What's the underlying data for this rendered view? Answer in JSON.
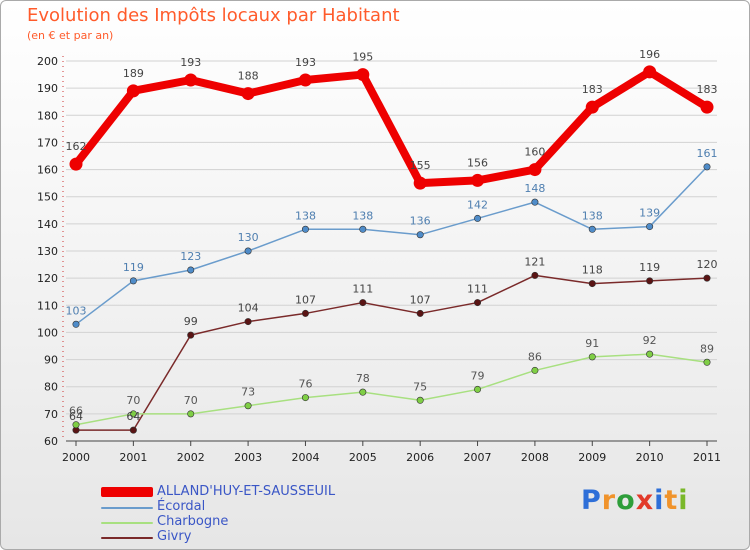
{
  "chart": {
    "title": "Evolution des Impôts locaux par Habitant",
    "subtitle": "(en € et par an)"
  },
  "colors": {
    "title": "#ff5b2b",
    "legend_text": "#3a56c6",
    "axis_text": "#222222"
  },
  "brand": {
    "letters": [
      "P",
      "r",
      "o",
      "x",
      "i",
      "t",
      "i"
    ],
    "letter_colors": [
      "#2e6fd8",
      "#f0932b",
      "#2e9e3a",
      "#e23a2a",
      "#2e6fd8",
      "#f0932b",
      "#7ab82a"
    ]
  },
  "chart_data": {
    "type": "line",
    "title": "Evolution des Impôts locaux par Habitant",
    "subtitle": "(en € et par an)",
    "xlabel": "",
    "ylabel": "",
    "categories": [
      "2000",
      "2001",
      "2002",
      "2003",
      "2004",
      "2005",
      "2006",
      "2007",
      "2008",
      "2009",
      "2010",
      "2011"
    ],
    "ylim": [
      60,
      200
    ],
    "yticks": [
      60,
      70,
      80,
      90,
      100,
      110,
      120,
      130,
      140,
      150,
      160,
      170,
      180,
      190,
      200
    ],
    "grid": "horizontal",
    "legend_position": "bottom-left",
    "series": [
      {
        "name": "ALLAND'HUY-ET-SAUSSEUIL",
        "color": "#ee0000",
        "highlight": true,
        "values": [
          162,
          189,
          193,
          188,
          193,
          195,
          155,
          156,
          160,
          183,
          196,
          183
        ]
      },
      {
        "name": "Écordal",
        "color": "#6a9ccc",
        "marker_color": "#4f8cc9",
        "highlight": false,
        "values": [
          103,
          119,
          123,
          130,
          138,
          138,
          136,
          142,
          148,
          138,
          139,
          161
        ]
      },
      {
        "name": "Charbogne",
        "color": "#a8e080",
        "marker_color": "#7fce45",
        "highlight": false,
        "values": [
          66,
          70,
          70,
          73,
          76,
          78,
          75,
          79,
          86,
          91,
          92,
          89
        ]
      },
      {
        "name": "Givry",
        "color": "#7a2a2a",
        "marker_color": "#5a1414",
        "highlight": false,
        "values": [
          64,
          64,
          99,
          104,
          107,
          111,
          107,
          111,
          121,
          118,
          119,
          120
        ]
      }
    ]
  }
}
